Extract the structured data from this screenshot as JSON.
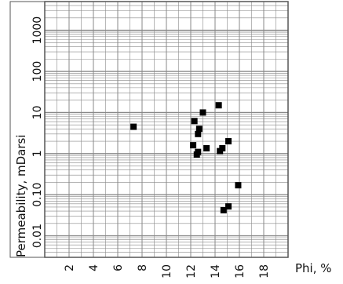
{
  "chart_data": {
    "type": "scatter",
    "xlabel": "Phi, %",
    "ylabel": "Permeability, mDarsi",
    "xscale": "linear",
    "yscale": "log",
    "xlim": [
      0,
      20
    ],
    "ylim": [
      0.003,
      5000
    ],
    "x_ticks": [
      "2",
      "4",
      "6",
      "8",
      "10",
      "12",
      "14",
      "16",
      "18"
    ],
    "y_ticks": [
      "0.01",
      "0.10",
      "1",
      "10",
      "100",
      "1000"
    ],
    "grid": true,
    "legend": "none",
    "colors": {
      "marker": "#000000",
      "grid": "#888888",
      "frame": "#555555"
    },
    "points": [
      {
        "x": 7.3,
        "y": 4.5
      },
      {
        "x": 12.3,
        "y": 6.2
      },
      {
        "x": 12.7,
        "y": 4.0
      },
      {
        "x": 12.6,
        "y": 3.0
      },
      {
        "x": 13.0,
        "y": 10.0
      },
      {
        "x": 14.3,
        "y": 15.0
      },
      {
        "x": 12.2,
        "y": 1.6
      },
      {
        "x": 13.3,
        "y": 1.35
      },
      {
        "x": 12.6,
        "y": 1.1
      },
      {
        "x": 12.5,
        "y": 0.95
      },
      {
        "x": 14.4,
        "y": 1.15
      },
      {
        "x": 14.6,
        "y": 1.35
      },
      {
        "x": 15.1,
        "y": 2.0
      },
      {
        "x": 15.9,
        "y": 0.17
      },
      {
        "x": 15.1,
        "y": 0.052
      },
      {
        "x": 14.7,
        "y": 0.042
      }
    ]
  }
}
